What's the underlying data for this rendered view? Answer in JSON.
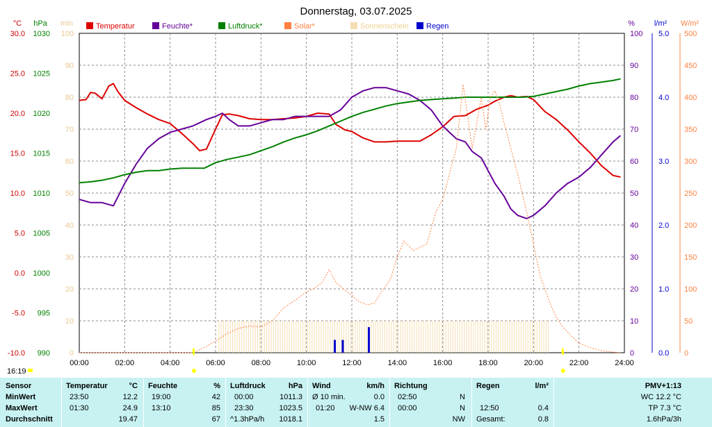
{
  "chart_data": {
    "type": "line",
    "title": "Donnerstag, 03.07.2025",
    "time_label": "16:19",
    "x_ticks": [
      "00:00",
      "02:00",
      "04:00",
      "06:00",
      "08:00",
      "10:00",
      "12:00",
      "14:00",
      "16:00",
      "18:00",
      "20:00",
      "22:00",
      "24:00"
    ],
    "axes": {
      "temperature": {
        "unit": "°C",
        "color": "#cc0000",
        "ylim": [
          -10,
          30
        ],
        "ticks": [
          "30.0",
          "25.0",
          "20.0",
          "15.0",
          "10.0",
          "5.0",
          "0.0",
          "-5.0",
          "-10.0"
        ]
      },
      "pressure": {
        "unit": "hPa",
        "color": "#008000",
        "ylim": [
          990,
          1030
        ],
        "ticks": [
          "1030",
          "1025",
          "1020",
          "1015",
          "1010",
          "1005",
          "1000",
          "995",
          "990"
        ]
      },
      "sunshine": {
        "unit": "min",
        "color": "#f5deb3",
        "ylim": [
          0,
          100
        ],
        "ticks": [
          "100",
          "90",
          "80",
          "70",
          "60",
          "50",
          "40",
          "30",
          "20",
          "10",
          "0"
        ]
      },
      "humidity": {
        "unit": "%",
        "color": "#660099",
        "ylim": [
          0,
          100
        ],
        "ticks": [
          "100",
          "90",
          "80",
          "70",
          "60",
          "50",
          "40",
          "30",
          "20",
          "10",
          "0"
        ]
      },
      "rain": {
        "unit": "l/m²",
        "color": "#0000cc",
        "ylim": [
          0,
          5
        ],
        "ticks": [
          "5.0",
          "4.0",
          "3.0",
          "2.0",
          "1.0",
          "0.0"
        ]
      },
      "solar": {
        "unit": "W/m²",
        "color": "#ff8040",
        "ylim": [
          0,
          500
        ],
        "ticks": [
          "500",
          "450",
          "400",
          "350",
          "300",
          "250",
          "200",
          "150",
          "100",
          "50",
          "0"
        ]
      }
    },
    "series": [
      {
        "name": "Temperatur",
        "axis": "temperature",
        "color": "#dd0000",
        "x": [
          0,
          0.3,
          0.5,
          0.7,
          1.0,
          1.3,
          1.5,
          1.7,
          2,
          2.5,
          3,
          3.5,
          4,
          4.5,
          5,
          5.3,
          5.6,
          6,
          6.3,
          6.6,
          7,
          7.5,
          8,
          8.5,
          9,
          9.5,
          10,
          10.5,
          11,
          11.3,
          11.7,
          12,
          12.5,
          13,
          13.5,
          14,
          14.5,
          15,
          15.5,
          16,
          16.5,
          17,
          17.5,
          18,
          18.3,
          18.7,
          19,
          19.3,
          19.7,
          20,
          20.5,
          21,
          21.5,
          22,
          22.5,
          23,
          23.5,
          23.83
        ],
        "y": [
          21.6,
          21.7,
          22.6,
          22.5,
          21.8,
          23.4,
          23.7,
          22.7,
          21.6,
          20.7,
          19.9,
          19.2,
          18.7,
          17.5,
          16.2,
          15.3,
          15.5,
          18.0,
          19.8,
          19.9,
          19.7,
          19.3,
          19.2,
          19.2,
          19.3,
          19.4,
          19.6,
          20.0,
          19.9,
          18.6,
          17.9,
          17.7,
          16.9,
          16.4,
          16.4,
          16.5,
          16.5,
          16.5,
          17.3,
          18.3,
          19.6,
          19.7,
          20.5,
          21.0,
          21.5,
          22.0,
          22.2,
          22.0,
          22.1,
          21.7,
          20.2,
          19.2,
          17.9,
          16.4,
          15.0,
          13.4,
          12.2,
          12.0
        ]
      },
      {
        "name": "Feuchte*",
        "axis": "humidity",
        "color": "#660099",
        "x": [
          0,
          0.5,
          1,
          1.5,
          2,
          2.5,
          3,
          3.5,
          4,
          4.5,
          5,
          5.3,
          5.6,
          6,
          6.3,
          6.6,
          7,
          7.5,
          8,
          8.5,
          9,
          9.5,
          10,
          10.5,
          11,
          11.5,
          12,
          12.5,
          13,
          13.5,
          14,
          14.5,
          15,
          15.5,
          16,
          16.3,
          16.6,
          17,
          17.3,
          17.7,
          18,
          18.3,
          18.7,
          19,
          19.3,
          19.7,
          20,
          20.5,
          21,
          21.5,
          22,
          22.5,
          23,
          23.5,
          23.83
        ],
        "y": [
          48,
          47,
          47,
          46,
          53,
          59,
          64,
          67,
          69,
          70,
          71,
          72,
          73,
          74,
          75,
          73,
          71,
          71,
          72,
          73,
          73,
          74,
          74,
          74,
          74,
          76,
          80,
          82,
          83,
          83,
          82,
          81,
          79,
          76,
          71,
          69,
          67,
          66,
          63,
          61,
          57,
          53,
          49,
          45,
          43,
          42,
          43,
          46,
          50,
          53,
          55,
          58,
          62,
          66,
          68
        ]
      },
      {
        "name": "Luftdruck*",
        "axis": "pressure",
        "color": "#008000",
        "x": [
          0,
          0.5,
          1,
          1.5,
          2,
          2.5,
          3,
          3.5,
          4,
          4.5,
          5,
          5.5,
          6,
          6.5,
          7,
          7.5,
          8,
          8.5,
          9,
          9.5,
          10,
          10.5,
          11,
          11.5,
          12,
          12.5,
          13,
          13.5,
          14,
          14.5,
          15,
          15.5,
          16,
          16.5,
          17,
          17.5,
          18,
          18.5,
          19,
          19.5,
          20,
          20.5,
          21,
          21.5,
          22,
          22.5,
          23,
          23.5,
          23.83
        ],
        "y": [
          1011.3,
          1011.4,
          1011.6,
          1011.9,
          1012.3,
          1012.6,
          1012.8,
          1012.8,
          1013.0,
          1013.1,
          1013.1,
          1013.1,
          1013.8,
          1014.2,
          1014.5,
          1014.8,
          1015.3,
          1015.8,
          1016.4,
          1016.9,
          1017.3,
          1017.8,
          1018.4,
          1019.0,
          1019.6,
          1020.1,
          1020.5,
          1020.9,
          1021.2,
          1021.4,
          1021.6,
          1021.7,
          1021.8,
          1021.9,
          1022.0,
          1022.0,
          1022.0,
          1022.0,
          1022.0,
          1022.0,
          1022.1,
          1022.4,
          1022.7,
          1023.0,
          1023.4,
          1023.7,
          1023.9,
          1024.1,
          1024.3
        ]
      },
      {
        "name": "Solar*",
        "axis": "solar",
        "color": "#ff8040",
        "x": [
          0,
          5.0,
          5.5,
          6.0,
          6.5,
          7.0,
          7.5,
          8.0,
          8.5,
          9.0,
          9.5,
          10.0,
          10.3,
          10.7,
          11.0,
          11.3,
          11.7,
          12.0,
          12.3,
          12.7,
          13.0,
          13.3,
          13.7,
          14.0,
          14.3,
          14.7,
          15.0,
          15.3,
          15.7,
          16.0,
          16.3,
          16.6,
          16.9,
          17.1,
          17.3,
          17.5,
          17.7,
          17.9,
          18.1,
          18.3,
          18.5,
          18.7,
          19.0,
          19.3,
          19.7,
          20.0,
          20.3,
          20.7,
          21.0,
          21.3,
          21.7,
          22.0,
          22.5,
          23.0,
          23.5,
          23.83
        ],
        "y": [
          0,
          0,
          8,
          18,
          30,
          38,
          42,
          40,
          50,
          70,
          82,
          95,
          100,
          110,
          130,
          110,
          98,
          90,
          80,
          75,
          78,
          95,
          115,
          150,
          175,
          160,
          165,
          170,
          220,
          240,
          280,
          320,
          420,
          370,
          320,
          360,
          400,
          350,
          400,
          410,
          390,
          360,
          320,
          280,
          220,
          170,
          120,
          80,
          55,
          40,
          25,
          15,
          8,
          3,
          1,
          0
        ]
      },
      {
        "name": "Sonnenschein",
        "axis": "sunshine",
        "color": "#f5deb3",
        "x_start": 6.15,
        "x_end": 20.65,
        "value": 10
      },
      {
        "name": "Regen",
        "axis": "rain",
        "color": "#0000cc",
        "bars": [
          {
            "x": 11.25,
            "value": 0.2
          },
          {
            "x": 11.6,
            "value": 0.2
          },
          {
            "x": 12.75,
            "value": 0.4
          }
        ]
      }
    ],
    "markers": [
      {
        "x": 5.05,
        "color": "#ffff00"
      },
      {
        "x": 21.3,
        "color": "#ffff00"
      }
    ],
    "grid": true,
    "legend_position": "top"
  },
  "stats": {
    "headers": {
      "sensor": "Sensor",
      "temperature": "Temperatur",
      "temperature_unit": "°C",
      "humidity": "Feuchte",
      "humidity_unit": "%",
      "pressure": "Luftdruck",
      "pressure_unit": "hPa",
      "wind": "Wind",
      "wind_unit": "km/h",
      "direction": "Richtung",
      "rain": "Regen",
      "rain_unit": "l/m²",
      "pmv": "PMV+1:13"
    },
    "rows": [
      {
        "label": "MinWert",
        "temp_time": "23:50",
        "temp_val": "12.2",
        "hum_time": "19:00",
        "hum_val": "42",
        "press_time": "00:00",
        "press_val": "1011.3",
        "wind_label": "Ø 10 min.",
        "wind_val": "0.0",
        "dir_time": "02:50",
        "dir_val": "N",
        "rain_time": "",
        "rain_val": "",
        "pmv_val": "WC 12.2 °C"
      },
      {
        "label": "MaxWert",
        "temp_time": "01:30",
        "temp_val": "24.9",
        "hum_time": "13:10",
        "hum_val": "85",
        "press_time": "23:30",
        "press_val": "1023.5",
        "wind_label": "01:20",
        "wind_val": "W-NW 6.4",
        "dir_time": "00:00",
        "dir_val": "N",
        "rain_time": "12:50",
        "rain_val": "0.4",
        "pmv_val": "TP 7.3 °C"
      },
      {
        "label": "Durchschnitt",
        "temp_time": "",
        "temp_val": "19.47",
        "hum_time": "",
        "hum_val": "67",
        "press_time": "^1.3hPa/h",
        "press_val": "1018.1",
        "wind_label": "",
        "wind_val": "1.5",
        "dir_time": "",
        "dir_val": "NW",
        "rain_time": "Gesamt:",
        "rain_val": "0.8",
        "pmv_val": "1.6hPa/3h"
      }
    ]
  }
}
